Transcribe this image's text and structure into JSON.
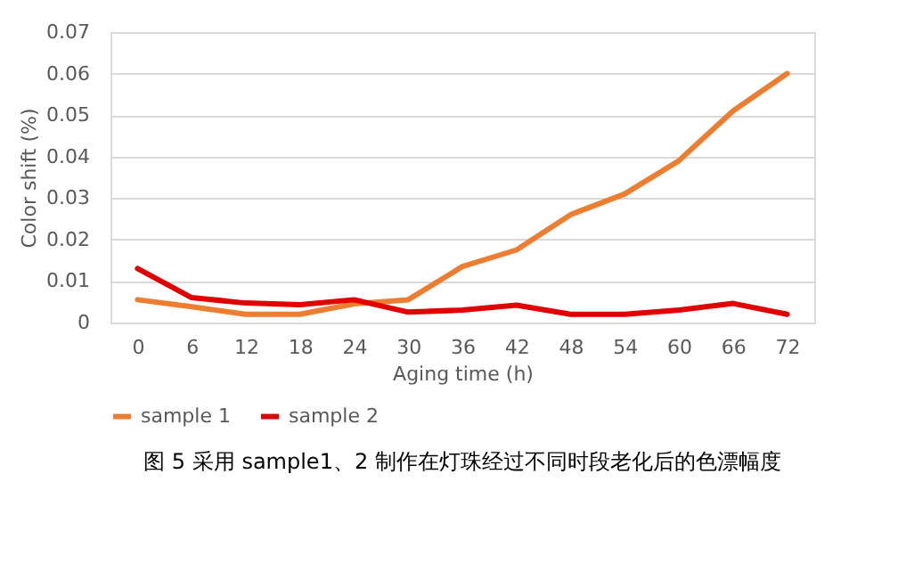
{
  "chart_data": {
    "type": "line",
    "xlabel": "Aging time (h)",
    "ylabel": "Color shift (%)",
    "categories": [
      "0",
      "6",
      "12",
      "18",
      "24",
      "30",
      "36",
      "42",
      "48",
      "54",
      "60",
      "66",
      "72"
    ],
    "series": [
      {
        "name": "sample 1",
        "color": "#ed7d31",
        "values": [
          0.0055,
          0.0038,
          0.002,
          0.002,
          0.0045,
          0.0055,
          0.0135,
          0.0175,
          0.026,
          0.031,
          0.039,
          0.051,
          0.06
        ]
      },
      {
        "name": "sample 2",
        "color": "#e00000",
        "values": [
          0.013,
          0.006,
          0.0047,
          0.0043,
          0.0055,
          0.0025,
          0.003,
          0.0042,
          0.002,
          0.002,
          0.003,
          0.0046,
          0.002
        ]
      }
    ],
    "ylim": [
      0,
      0.07
    ],
    "yticks": [
      {
        "value": 0,
        "label": "0"
      },
      0.01,
      0.02,
      0.03,
      0.04,
      0.05,
      0.06,
      0.07
    ],
    "grid": "y",
    "legend": "bottom",
    "marker": "none",
    "line_style": "solid",
    "annotations": [
      "图 5 采用 sample1、2 制作在灯珠经过不同时段老化后的色漂幅度"
    ]
  }
}
